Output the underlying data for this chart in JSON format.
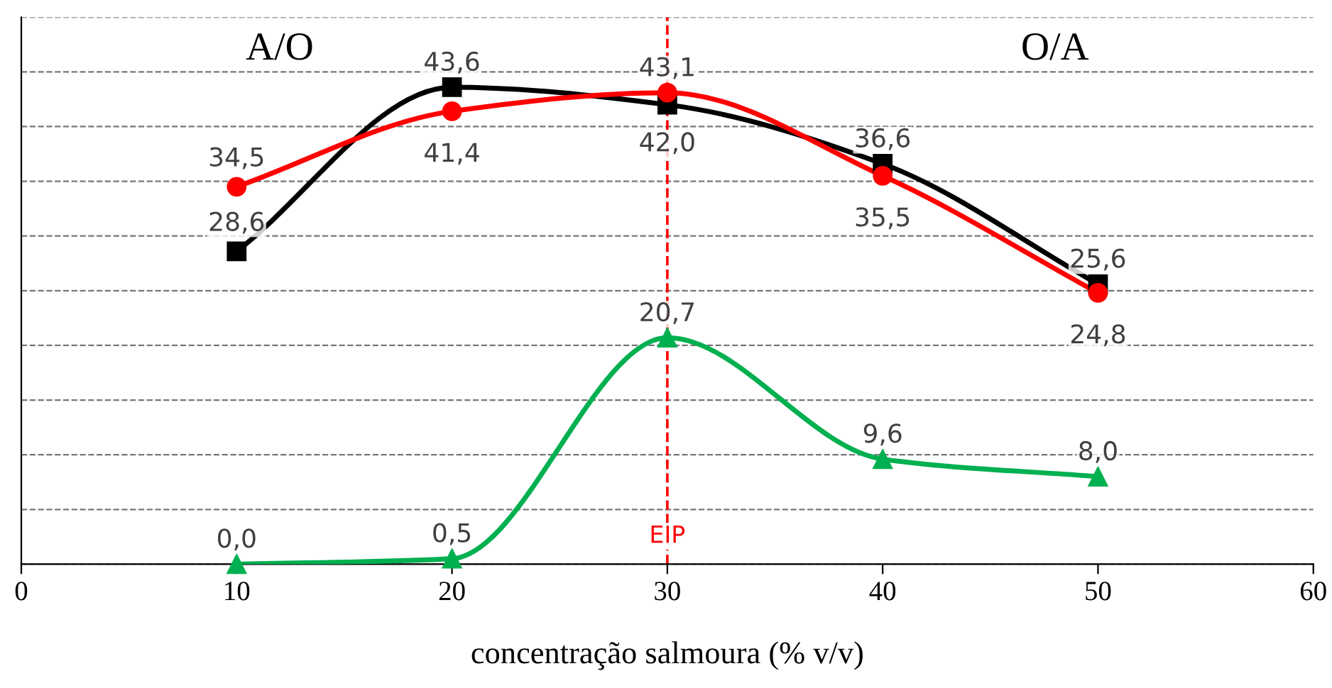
{
  "chart_data": {
    "type": "line",
    "xlabel": "concentração salmoura (% v/v)",
    "x": [
      10,
      20,
      30,
      40,
      50
    ],
    "xlim": [
      0,
      60
    ],
    "xticks": [
      0,
      10,
      20,
      30,
      40,
      50,
      60
    ],
    "ylim": [
      0,
      50
    ],
    "yticks": [
      {
        "value": 0,
        "label": null
      },
      {
        "value": 5,
        "label": null
      },
      {
        "value": 10,
        "label": null
      },
      {
        "value": 15,
        "label": null
      },
      {
        "value": 20,
        "label": null
      },
      {
        "value": 25,
        "label": null
      },
      {
        "value": 30,
        "label": null
      },
      {
        "value": 35,
        "label": null
      },
      {
        "value": 40,
        "label": null
      },
      {
        "value": 45,
        "label": null
      },
      {
        "value": 50,
        "label": null
      }
    ],
    "grid": "y",
    "line_style": "solid",
    "tick_labels": "x",
    "series": [
      {
        "color": "#000000",
        "marker": "square",
        "values": [
          28.6,
          43.6,
          42.0,
          36.6,
          25.6
        ],
        "value_labels": [
          "28,6",
          "43,6",
          "42,0",
          "36,6",
          "25,6"
        ]
      },
      {
        "color": "#ff0000",
        "marker": "circle",
        "values": [
          34.5,
          41.4,
          43.1,
          35.5,
          24.8
        ],
        "value_labels": [
          "34,5",
          "41,4",
          "43,1",
          "35,5",
          "24,8"
        ]
      },
      {
        "color": "#00b050",
        "marker": "triangle",
        "values": [
          0.0,
          0.5,
          20.7,
          9.6,
          8.0
        ],
        "value_labels": [
          "0,0",
          "0,5",
          "20,7",
          "9,6",
          "8,0"
        ]
      }
    ],
    "ref_lines": [
      {
        "axis": "x",
        "value": 30,
        "label": "EIP",
        "color": "#ff0000",
        "line_style": "dashed"
      }
    ],
    "annotations": [
      "A/O",
      "O/A"
    ]
  }
}
